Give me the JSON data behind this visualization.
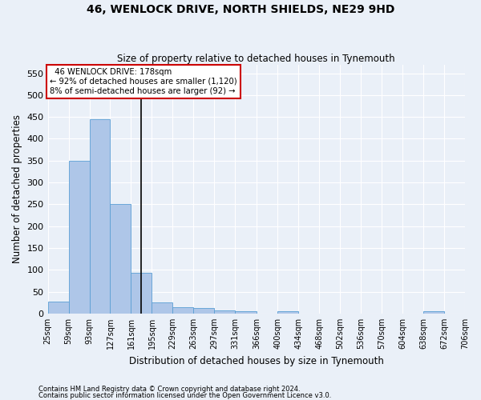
{
  "title": "46, WENLOCK DRIVE, NORTH SHIELDS, NE29 9HD",
  "subtitle": "Size of property relative to detached houses in Tynemouth",
  "xlabel": "Distribution of detached houses by size in Tynemouth",
  "ylabel": "Number of detached properties",
  "footnote1": "Contains HM Land Registry data © Crown copyright and database right 2024.",
  "footnote2": "Contains public sector information licensed under the Open Government Licence v3.0.",
  "annotation_line1": "  46 WENLOCK DRIVE: 178sqm",
  "annotation_line2": "← 92% of detached houses are smaller (1,120)",
  "annotation_line3": "8% of semi-detached houses are larger (92) →",
  "bar_color": "#aec6e8",
  "bar_edge_color": "#5a9fd4",
  "bins": [
    25,
    59,
    93,
    127,
    161,
    195,
    229,
    263,
    297,
    331,
    366,
    400,
    434,
    468,
    502,
    536,
    570,
    604,
    638,
    672,
    706
  ],
  "bar_values": [
    28,
    350,
    445,
    250,
    93,
    25,
    15,
    12,
    7,
    6,
    0,
    6,
    0,
    0,
    0,
    0,
    0,
    0,
    6,
    0
  ],
  "ylim": [
    0,
    570
  ],
  "yticks": [
    0,
    50,
    100,
    150,
    200,
    250,
    300,
    350,
    400,
    450,
    500,
    550
  ],
  "background_color": "#eaf0f8",
  "grid_color": "#ffffff",
  "annotation_box_color": "#ffffff",
  "annotation_box_edge_color": "#cc0000",
  "vline_bin_index": 4
}
